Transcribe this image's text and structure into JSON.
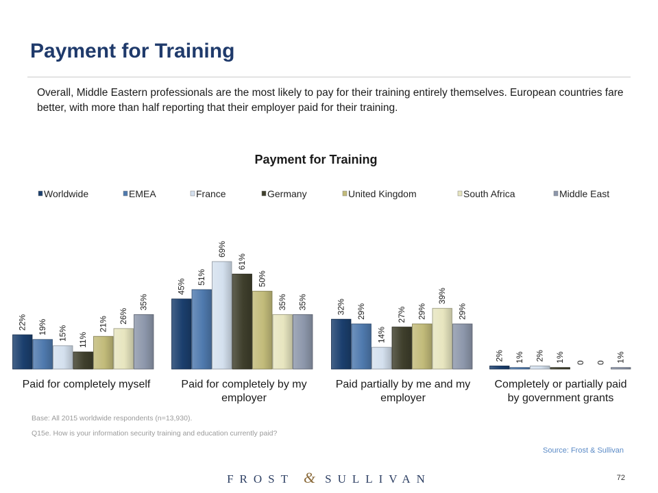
{
  "slide": {
    "title": "Payment for Training",
    "summary": "Overall, Middle Eastern professionals are the most likely to pay for their training entirely themselves. European countries fare better, with more than half reporting that their employer paid for their training.",
    "base_note": "Base: All 2015 worldwide respondents (n=13,930).",
    "question_note": "Q15e.  How is your information security training and education currently paid?",
    "source": "Source: Frost & Sullivan",
    "logo_left": "FROST",
    "logo_amp": "&",
    "logo_right": "SULLIVAN",
    "page_number": "72"
  },
  "colors": {
    "title": "#1f3a6b",
    "source": "#5a8ac6"
  },
  "chart_data": {
    "type": "bar",
    "title": "Payment for Training",
    "legend_position": "top",
    "categories": [
      "Paid for completely myself",
      "Paid for completely by my employer",
      "Paid partially by me and my employer",
      "Completely or partially paid by government grants"
    ],
    "series": [
      {
        "name": "Worldwide",
        "color": "#1b3f6e",
        "values": [
          22,
          45,
          32,
          2
        ],
        "labels": [
          "22%",
          "45%",
          "32%",
          "2%"
        ]
      },
      {
        "name": "EMEA",
        "color": "#4f7aae",
        "values": [
          19,
          51,
          29,
          1
        ],
        "labels": [
          "19%",
          "51%",
          "29%",
          "1%"
        ]
      },
      {
        "name": "France",
        "color": "#d4e0ee",
        "values": [
          15,
          69,
          14,
          2
        ],
        "labels": [
          "15%",
          "69%",
          "14%",
          "2%"
        ]
      },
      {
        "name": "Germany",
        "color": "#3f3f2c",
        "values": [
          11,
          61,
          27,
          1
        ],
        "labels": [
          "11%",
          "61%",
          "27%",
          "1%"
        ]
      },
      {
        "name": "United Kingdom",
        "color": "#c2bb7a",
        "values": [
          21,
          50,
          29,
          0
        ],
        "labels": [
          "21%",
          "50%",
          "29%",
          "0"
        ]
      },
      {
        "name": "South Africa",
        "color": "#e7e5bf",
        "values": [
          26,
          35,
          39,
          0
        ],
        "labels": [
          "26%",
          "35%",
          "39%",
          "0"
        ]
      },
      {
        "name": "Middle East",
        "color": "#8d97ab",
        "values": [
          35,
          35,
          29,
          1
        ],
        "labels": [
          "35%",
          "35%",
          "29%",
          "1%"
        ]
      }
    ],
    "ylim": [
      0,
      80
    ],
    "grid": false,
    "xlabel": "",
    "ylabel": ""
  }
}
